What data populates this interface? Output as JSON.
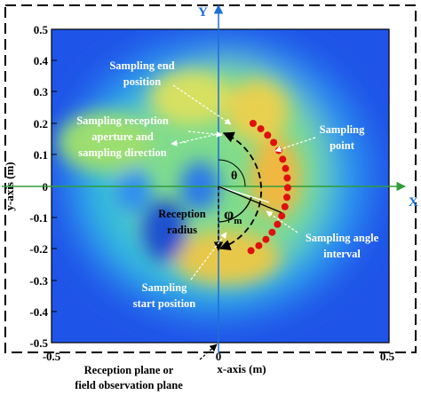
{
  "figure": {
    "axis_letters": {
      "x": "X",
      "y": "Y"
    },
    "x_axis_title": "x-axis (m)",
    "y_axis_title": "y-axis (m)",
    "x_ticks": [
      "-0.5",
      "0",
      "0.5"
    ],
    "y_ticks": [
      "0.5",
      "0.4",
      "0.3",
      "0.2",
      "0.1",
      "0",
      "-0.1",
      "-0.2",
      "-0.3",
      "-0.4",
      "-0.5"
    ],
    "labels": {
      "sampling_end_line1": "Sampling end",
      "sampling_end_line2": "position",
      "reception_line1": "Sampling reception",
      "reception_line2": "aperture and",
      "reception_line3": "sampling direction",
      "sampling_point_line1": "Sampling",
      "sampling_point_line2": "point",
      "theta": "θ",
      "phi": "φ",
      "phi_sub": "m",
      "radius_line1": "Reception",
      "radius_line2": "radius",
      "angle_interval_line1": "Sampling angle",
      "angle_interval_line2": "interval",
      "start_line1": "Sampling",
      "start_line2": "start position",
      "plane_line1": "Reception plane or",
      "plane_line2": "field observation plane"
    },
    "colors": {
      "axis_line": "#2f9e3a",
      "y_axis_line": "#1d6fd8",
      "sample_point": "#e01010",
      "field_low": "#1f54e8",
      "field_mid": "#28c8c0",
      "field_high": "#f2d24a"
    },
    "sampling_points_count": 17
  }
}
